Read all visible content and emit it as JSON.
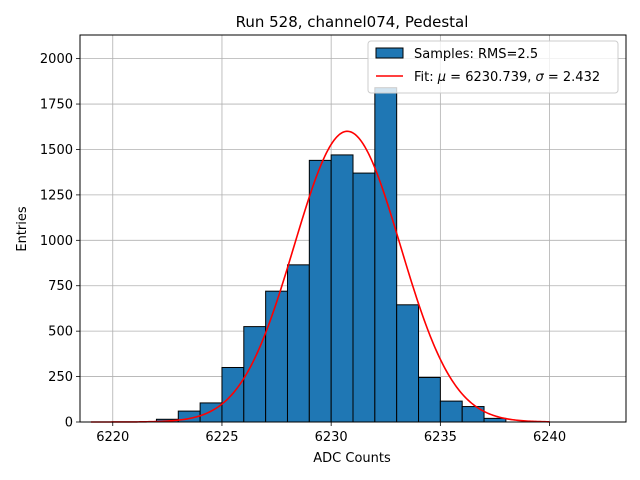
{
  "chart_data": {
    "type": "bar",
    "title": "Run 528, channel074, Pedestal",
    "xlabel": "ADC Counts",
    "ylabel": "Entries",
    "xlim": [
      6218.5,
      6243.5
    ],
    "ylim": [
      0,
      2130
    ],
    "xticks": [
      6220,
      6225,
      6230,
      6235,
      6240
    ],
    "yticks": [
      0,
      250,
      500,
      750,
      1000,
      1250,
      1500,
      1750,
      2000
    ],
    "grid": true,
    "legend_position": "top-right",
    "histogram": {
      "name": "Samples: RMS=2.5",
      "color": "#1f77b4",
      "edgecolor": "#000000",
      "bin_edges": [
        6222,
        6223,
        6224,
        6225,
        6226,
        6227,
        6228,
        6229,
        6230,
        6231,
        6232,
        6233,
        6234,
        6235,
        6236,
        6237,
        6238
      ],
      "counts": [
        15,
        60,
        105,
        300,
        525,
        720,
        865,
        1440,
        1470,
        1370,
        1840,
        645,
        245,
        115,
        85,
        20
      ]
    },
    "fit": {
      "name": "Fit: μ = 6230.739, σ = 2.432",
      "name_parts": [
        "Fit: ",
        "μ",
        " = 6230.739, ",
        "σ",
        " = 2.432"
      ],
      "color": "#ff0000",
      "mu": 6230.739,
      "sigma": 2.432,
      "amplitude": 1600,
      "x_range": [
        6219,
        6240
      ]
    }
  }
}
